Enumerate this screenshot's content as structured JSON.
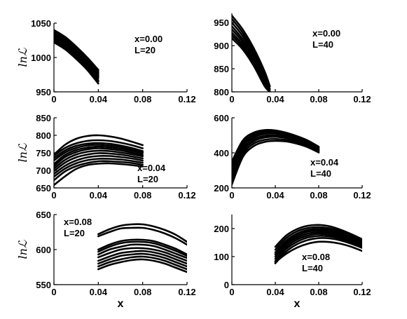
{
  "chart_data": [
    {
      "type": "line",
      "panel": "row1-left",
      "annotation": [
        "x=0.00",
        "L=20"
      ],
      "ylabel": "lnℒ",
      "xlabel": "",
      "xlim": [
        0,
        0.12
      ],
      "ylim": [
        950,
        1050
      ],
      "xticks": [
        "0",
        "0.04",
        "0.08",
        "0.12"
      ],
      "yticks": [
        "950",
        "1000",
        "1050"
      ],
      "x": [
        0,
        0.01,
        0.02,
        0.03,
        0.04
      ],
      "series": [
        {
          "values": [
            1040,
            1030,
            1016,
            1000,
            982
          ]
        },
        {
          "values": [
            1038,
            1028,
            1014,
            998,
            980
          ]
        },
        {
          "values": [
            1036,
            1026,
            1012,
            996,
            978
          ]
        },
        {
          "values": [
            1034,
            1024,
            1010,
            994,
            976
          ]
        },
        {
          "values": [
            1032,
            1022,
            1008,
            992,
            974
          ]
        },
        {
          "values": [
            1030,
            1020,
            1006,
            990,
            972
          ]
        },
        {
          "values": [
            1028,
            1018,
            1004,
            988,
            970
          ]
        },
        {
          "values": [
            1026,
            1016,
            1002,
            986,
            967
          ]
        },
        {
          "values": [
            1024,
            1014,
            1000,
            984,
            965
          ]
        },
        {
          "values": [
            1022,
            1012,
            998,
            982,
            962
          ]
        }
      ]
    },
    {
      "type": "line",
      "panel": "row1-right",
      "annotation": [
        "x=0.00",
        "L=40"
      ],
      "ylabel": "",
      "xlabel": "",
      "xlim": [
        0,
        0.12
      ],
      "ylim": [
        800,
        970
      ],
      "xticks": [
        "0",
        "0.04",
        "0.08",
        "0.12"
      ],
      "yticks": [
        "800",
        "850",
        "900",
        "950"
      ],
      "x": [
        0,
        0.01,
        0.02,
        0.03,
        0.035
      ],
      "series": [
        {
          "values": [
            965,
            935,
            895,
            845,
            812
          ]
        },
        {
          "values": [
            958,
            928,
            888,
            838,
            806
          ]
        },
        {
          "values": [
            950,
            921,
            882,
            832,
            801
          ]
        },
        {
          "values": [
            942,
            914,
            876,
            828,
            800
          ]
        },
        {
          "values": [
            935,
            908,
            870,
            823,
            800
          ]
        },
        {
          "values": [
            928,
            902,
            865,
            819,
            800
          ]
        },
        {
          "values": [
            922,
            897,
            861,
            816,
            800
          ]
        },
        {
          "values": [
            916,
            892,
            857,
            813,
            800
          ]
        }
      ]
    },
    {
      "type": "line",
      "panel": "row2-left",
      "annotation": [
        "x=0.04",
        "L=20"
      ],
      "ylabel": "lnℒ",
      "xlabel": "",
      "xlim": [
        0,
        0.12
      ],
      "ylim": [
        650,
        850
      ],
      "xticks": [
        "0",
        "0.04",
        "0.08",
        "0.12"
      ],
      "yticks": [
        "650",
        "700",
        "750",
        "800",
        "850"
      ],
      "x": [
        0,
        0.01,
        0.02,
        0.03,
        0.04,
        0.05,
        0.06,
        0.07,
        0.08
      ],
      "series": [
        {
          "values": [
            745,
            773,
            790,
            798,
            800,
            797,
            791,
            782,
            772
          ]
        },
        {
          "values": [
            742,
            764,
            777,
            784,
            786,
            784,
            779,
            772,
            763
          ]
        },
        {
          "values": [
            735,
            757,
            770,
            776,
            778,
            776,
            771,
            764,
            755
          ]
        },
        {
          "values": [
            728,
            751,
            764,
            771,
            773,
            771,
            767,
            760,
            752
          ]
        },
        {
          "values": [
            718,
            744,
            758,
            765,
            768,
            766,
            762,
            756,
            749
          ]
        },
        {
          "values": [
            712,
            738,
            752,
            760,
            763,
            761,
            757,
            751,
            744
          ]
        },
        {
          "values": [
            705,
            730,
            745,
            753,
            756,
            755,
            751,
            746,
            740
          ]
        },
        {
          "values": [
            698,
            722,
            737,
            745,
            749,
            748,
            745,
            740,
            734
          ]
        },
        {
          "values": [
            690,
            713,
            728,
            737,
            741,
            741,
            738,
            734,
            728
          ]
        },
        {
          "values": [
            682,
            705,
            720,
            729,
            733,
            733,
            731,
            727,
            722
          ]
        },
        {
          "values": [
            672,
            697,
            712,
            721,
            726,
            726,
            724,
            721,
            716
          ]
        },
        {
          "values": [
            658,
            683,
            704,
            715,
            719,
            720,
            718,
            715,
            711
          ]
        }
      ]
    },
    {
      "type": "line",
      "panel": "row2-right",
      "annotation": [
        "x=0.04",
        "L=40"
      ],
      "ylabel": "",
      "xlabel": "",
      "xlim": [
        0,
        0.12
      ],
      "ylim": [
        200,
        600
      ],
      "xticks": [
        "0",
        "0.04",
        "0.08",
        "0.12"
      ],
      "yticks": [
        "200",
        "400",
        "600"
      ],
      "x": [
        0,
        0.01,
        0.02,
        0.03,
        0.04,
        0.05,
        0.06,
        0.07,
        0.08
      ],
      "series": [
        {
          "values": [
            350,
            470,
            515,
            530,
            528,
            515,
            495,
            470,
            435
          ]
        },
        {
          "values": [
            330,
            455,
            505,
            522,
            522,
            510,
            490,
            465,
            430
          ]
        },
        {
          "values": [
            310,
            445,
            495,
            515,
            516,
            505,
            485,
            460,
            425
          ]
        },
        {
          "values": [
            290,
            435,
            487,
            508,
            510,
            500,
            480,
            455,
            420
          ]
        },
        {
          "values": [
            270,
            420,
            476,
            497,
            500,
            492,
            474,
            450,
            416
          ]
        },
        {
          "values": [
            250,
            405,
            465,
            487,
            491,
            484,
            468,
            445,
            412
          ]
        },
        {
          "values": [
            235,
            390,
            452,
            474,
            479,
            474,
            460,
            438,
            407
          ]
        },
        {
          "values": [
            220,
            375,
            438,
            462,
            468,
            465,
            452,
            432,
            402
          ]
        }
      ]
    },
    {
      "type": "line",
      "panel": "row3-left",
      "annotation": [
        "x=0.08",
        "L=20"
      ],
      "ylabel": "lnℒ",
      "xlabel": "x",
      "xlim": [
        0,
        0.12
      ],
      "ylim": [
        550,
        650
      ],
      "xticks": [
        "0",
        "0.04",
        "0.08",
        "0.12"
      ],
      "yticks": [
        "550",
        "600",
        "650"
      ],
      "x": [
        0.04,
        0.05,
        0.06,
        0.07,
        0.08,
        0.09,
        0.1,
        0.11,
        0.12
      ],
      "series": [
        {
          "values": [
            622,
            629,
            634,
            636,
            636,
            633,
            628,
            621,
            611
          ]
        },
        {
          "values": [
            619,
            625,
            630,
            631,
            631,
            628,
            623,
            616,
            607
          ]
        },
        {
          "values": [
            600,
            607,
            612,
            614,
            614,
            612,
            607,
            601,
            593
          ]
        },
        {
          "values": [
            597,
            604,
            609,
            611,
            611,
            609,
            604,
            598,
            591
          ]
        },
        {
          "values": [
            593,
            600,
            604,
            607,
            607,
            605,
            600,
            594,
            588
          ]
        },
        {
          "values": [
            589,
            595,
            600,
            602,
            602,
            600,
            596,
            590,
            584
          ]
        },
        {
          "values": [
            584,
            590,
            595,
            597,
            598,
            596,
            592,
            586,
            580
          ]
        },
        {
          "values": [
            580,
            586,
            591,
            593,
            594,
            592,
            588,
            582,
            576
          ]
        },
        {
          "values": [
            576,
            582,
            586,
            589,
            590,
            588,
            584,
            578,
            572
          ]
        },
        {
          "values": [
            572,
            578,
            582,
            585,
            586,
            584,
            580,
            574,
            568
          ]
        }
      ]
    },
    {
      "type": "line",
      "panel": "row3-right",
      "annotation": [
        "x=0.08",
        "L=40"
      ],
      "ylabel": "",
      "xlabel": "x",
      "xlim": [
        0,
        0.12
      ],
      "ylim": [
        0,
        250
      ],
      "xticks": [
        "0",
        "0.04",
        "0.08",
        "0.12"
      ],
      "yticks": [
        "0",
        "100",
        "200"
      ],
      "x": [
        0.04,
        0.05,
        0.06,
        0.07,
        0.08,
        0.09,
        0.1,
        0.11,
        0.12
      ],
      "series": [
        {
          "values": [
            135,
            175,
            198,
            210,
            213,
            208,
            196,
            180,
            162
          ]
        },
        {
          "values": [
            125,
            166,
            190,
            202,
            205,
            201,
            190,
            175,
            158
          ]
        },
        {
          "values": [
            115,
            157,
            182,
            195,
            199,
            195,
            185,
            171,
            154
          ]
        },
        {
          "values": [
            108,
            150,
            175,
            189,
            193,
            190,
            180,
            166,
            150
          ]
        },
        {
          "values": [
            100,
            143,
            168,
            182,
            187,
            184,
            175,
            162,
            146
          ]
        },
        {
          "values": [
            92,
            135,
            161,
            175,
            181,
            178,
            170,
            157,
            142
          ]
        },
        {
          "values": [
            84,
            127,
            153,
            168,
            174,
            172,
            164,
            152,
            137
          ]
        },
        {
          "values": [
            76,
            118,
            144,
            159,
            166,
            165,
            158,
            146,
            131
          ]
        },
        {
          "values": [
            80,
            110,
            132,
            146,
            153,
            152,
            146,
            135,
            120
          ]
        }
      ]
    }
  ]
}
